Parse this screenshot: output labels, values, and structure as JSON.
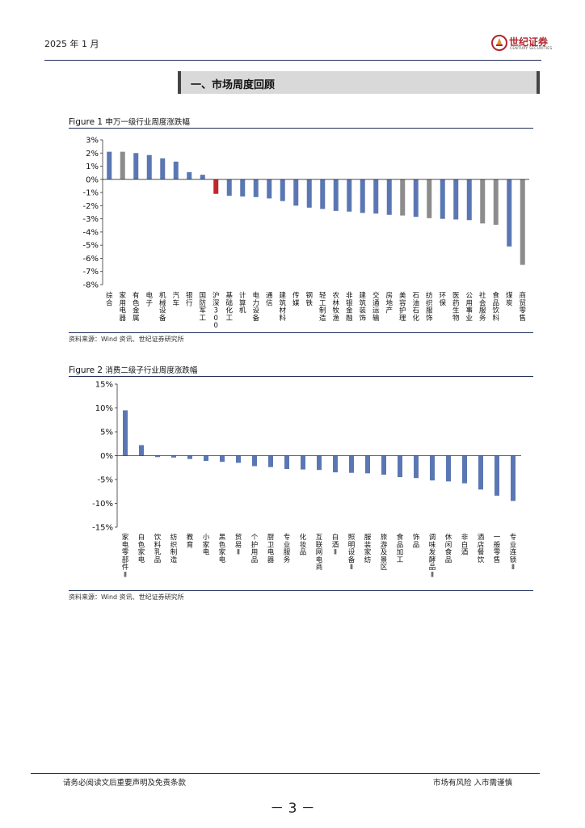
{
  "header": {
    "date": "2025 年 1 月",
    "logo_cn": "世纪证券",
    "logo_en": "CENTURY SECURITIES"
  },
  "section": {
    "title": "一、市场周度回顾"
  },
  "figure1": {
    "label": "Figure 1",
    "title": "申万一级行业周度涨跌幅",
    "source_prefix": "资料来源：",
    "source_wind": "Wind",
    "source_rest": " 资讯、世纪证券研究所"
  },
  "figure2": {
    "label": "Figure 2",
    "title": "消费二级子行业周度涨跌幅",
    "source_prefix": "资料来源：",
    "source_wind": "Wind",
    "source_rest": " 资讯、世纪证券研究所"
  },
  "footer": {
    "disclaimer": "请务必阅读文后重要声明及免责条款",
    "risk": "市场有风险 入市需谨慎",
    "page": "－ 3 －"
  },
  "colors": {
    "blue": "#5b77b3",
    "gray": "#8c8c8c",
    "red": "#c0272d",
    "navy": "#1f2d5a"
  },
  "chart_data": [
    {
      "type": "bar",
      "title": "申万一级行业周度涨跌幅",
      "unit": "%",
      "ylim": [
        -8,
        3
      ],
      "yticks": [
        3,
        2,
        1,
        0,
        -1,
        -2,
        -3,
        -4,
        -5,
        -6,
        -7,
        -8
      ],
      "ytick_labels": [
        "3%",
        "2%",
        "1%",
        "0%",
        "-1%",
        "-2%",
        "-3%",
        "-4%",
        "-5%",
        "-6%",
        "-7%",
        "-8%"
      ],
      "categories": [
        "综合",
        "家用电器",
        "有色金属",
        "电子",
        "机械设备",
        "汽车",
        "银行",
        "国防军工",
        "沪深300",
        "基础化工",
        "计算机",
        "电力设备",
        "通信",
        "建筑材料",
        "传媒",
        "钢铁",
        "轻工制造",
        "农林牧渔",
        "非银金融",
        "建筑装饰",
        "交通运输",
        "房地产",
        "美容护理",
        "石油石化",
        "纺织服饰",
        "环保",
        "医药生物",
        "公用事业",
        "社会服务",
        "食品饮料",
        "煤炭",
        "商贸零售"
      ],
      "values": [
        2.1,
        2.1,
        2.0,
        1.85,
        1.6,
        1.35,
        0.55,
        0.35,
        -1.1,
        -1.25,
        -1.3,
        -1.35,
        -1.45,
        -1.65,
        -2.0,
        -2.15,
        -2.25,
        -2.4,
        -2.45,
        -2.55,
        -2.6,
        -2.7,
        -2.75,
        -2.85,
        -2.95,
        -3.0,
        -3.05,
        -3.1,
        -3.35,
        -3.45,
        -5.1,
        -6.5
      ],
      "bar_colors": [
        "blue",
        "gray",
        "blue",
        "blue",
        "blue",
        "blue",
        "blue",
        "blue",
        "red",
        "blue",
        "blue",
        "blue",
        "blue",
        "blue",
        "blue",
        "blue",
        "blue",
        "blue",
        "blue",
        "blue",
        "blue",
        "blue",
        "gray",
        "blue",
        "gray",
        "blue",
        "blue",
        "blue",
        "gray",
        "gray",
        "blue",
        "gray"
      ]
    },
    {
      "type": "bar",
      "title": "消费二级子行业周度涨跌幅",
      "unit": "%",
      "ylim": [
        -15,
        15
      ],
      "yticks": [
        15,
        10,
        5,
        0,
        -5,
        -10,
        -15
      ],
      "ytick_labels": [
        "15%",
        "10%",
        "5%",
        "0%",
        "-5%",
        "-10%",
        "-15%"
      ],
      "categories": [
        "家电零部件Ⅱ",
        "白色家电",
        "饮料乳品",
        "纺织制造",
        "教育",
        "小家电",
        "黑色家电",
        "贸易Ⅱ",
        "个护用品",
        "厨卫电器",
        "专业服务",
        "化妆品",
        "互联网电商",
        "白酒Ⅱ",
        "照明设备Ⅱ",
        "服装家纺",
        "旅游及景区",
        "食品加工",
        "饰品",
        "调味发酵品Ⅱ",
        "休闲食品",
        "非白酒",
        "酒店餐饮",
        "一般零售",
        "专业连锁Ⅱ"
      ],
      "values": [
        9.5,
        2.2,
        -0.3,
        -0.4,
        -0.7,
        -1.1,
        -1.3,
        -1.5,
        -2.2,
        -2.4,
        -2.8,
        -2.9,
        -3.0,
        -3.5,
        -3.6,
        -3.7,
        -4.0,
        -4.5,
        -4.7,
        -5.2,
        -5.4,
        -5.8,
        -7.1,
        -8.4,
        -9.5
      ],
      "bar_colors": [
        "blue",
        "blue",
        "blue",
        "blue",
        "blue",
        "blue",
        "blue",
        "blue",
        "blue",
        "blue",
        "blue",
        "blue",
        "blue",
        "blue",
        "blue",
        "blue",
        "blue",
        "blue",
        "blue",
        "blue",
        "blue",
        "blue",
        "blue",
        "blue",
        "blue"
      ]
    }
  ]
}
